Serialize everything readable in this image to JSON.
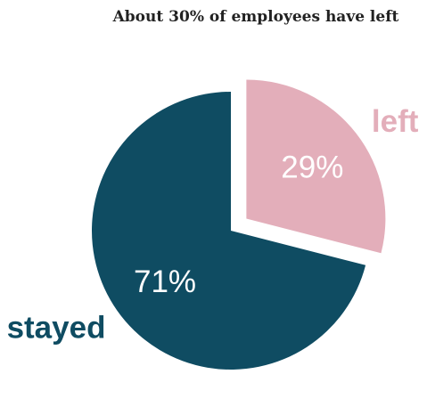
{
  "chart_data": {
    "type": "pie",
    "title": "About 30% of employees have left",
    "categories": [
      "stayed",
      "left"
    ],
    "values": [
      71,
      29
    ],
    "value_labels": [
      "71%",
      "29%"
    ],
    "colors": [
      "#0f4c62",
      "#e3aeba"
    ],
    "exploded": [
      "left"
    ]
  }
}
